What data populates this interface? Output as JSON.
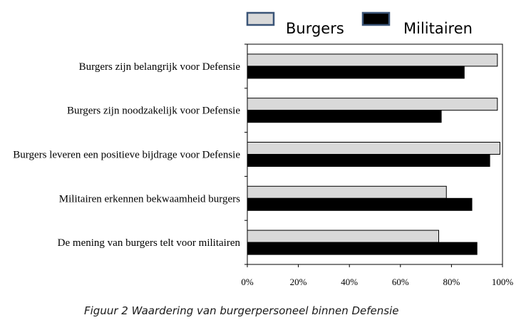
{
  "caption": "Figuur 2 Waardering van burgerpersoneel binnen Defensie",
  "chart_data": {
    "type": "bar",
    "orientation": "horizontal",
    "categories": [
      "Burgers zijn belangrijk voor Defensie",
      "Burgers zijn noodzakelijk voor Defensie",
      "Burgers leveren een positieve bijdrage voor Defensie",
      "Militairen erkennen bekwaamheid burgers",
      "De mening van burgers telt voor militairen"
    ],
    "series": [
      {
        "name": "Burgers",
        "color": "#d9d9d9",
        "values": [
          98,
          98,
          99,
          78,
          75
        ]
      },
      {
        "name": "Militairen",
        "color": "#000000",
        "values": [
          85,
          76,
          95,
          88,
          90
        ]
      }
    ],
    "xlim": [
      0,
      100
    ],
    "xticks": [
      0,
      20,
      40,
      60,
      80,
      100
    ],
    "xtick_labels": [
      "0%",
      "20%",
      "40%",
      "60%",
      "80%",
      "100%"
    ],
    "legend_position": "top",
    "grid": false
  }
}
